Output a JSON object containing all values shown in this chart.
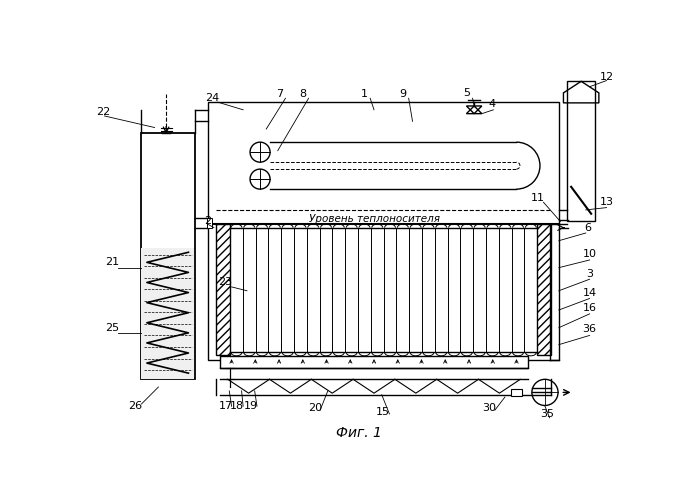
{
  "title": "Фиг. 1",
  "bg_color": "#ffffff",
  "line_color": "#000000",
  "fig_width": 6.99,
  "fig_height": 4.98,
  "dpi": 100
}
